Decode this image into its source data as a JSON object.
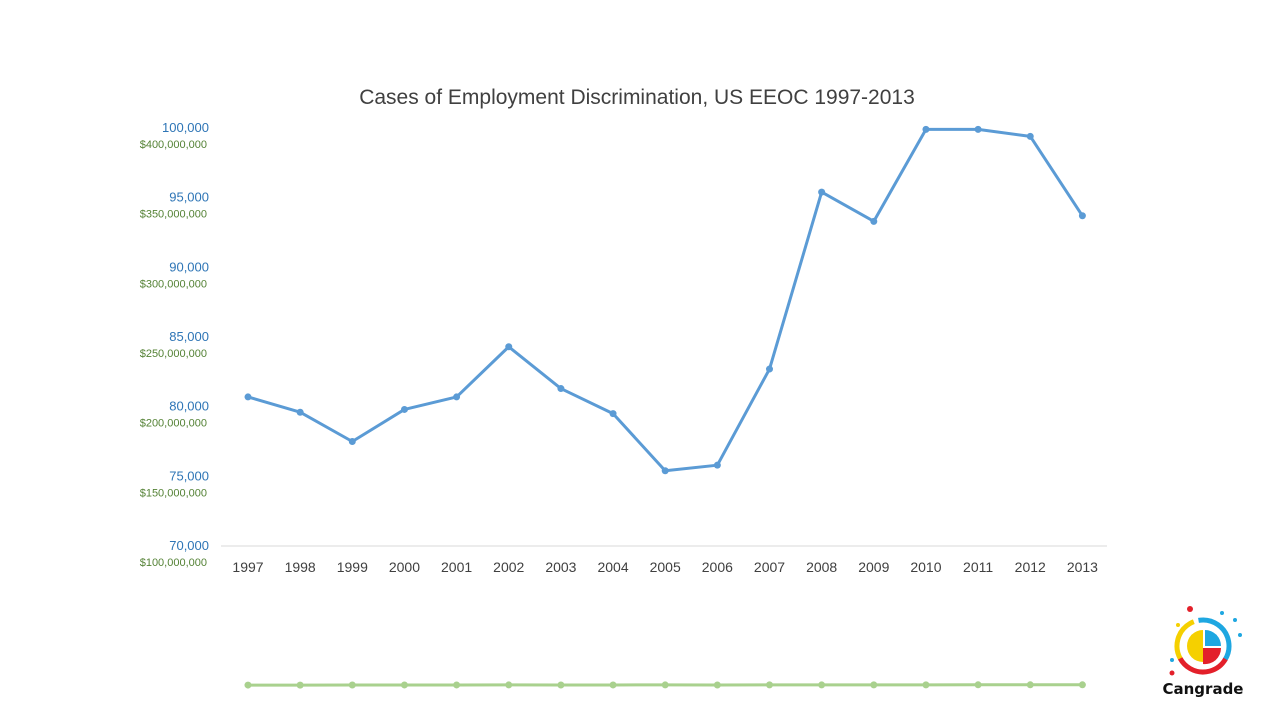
{
  "chart_data": {
    "type": "line",
    "title": "Cases of Employment Discrimination, US EEOC 1997-2013",
    "xlabel": "",
    "ylabel": "",
    "categories": [
      "1997",
      "1998",
      "1999",
      "2000",
      "2001",
      "2002",
      "2003",
      "2004",
      "2005",
      "2006",
      "2007",
      "2008",
      "2009",
      "2010",
      "2011",
      "2012",
      "2013"
    ],
    "y_axis_primary": {
      "range": [
        70000,
        100000
      ],
      "ticks": [
        70000,
        75000,
        80000,
        85000,
        90000,
        95000,
        100000
      ],
      "tick_labels": [
        "70,000",
        "75,000",
        "80,000",
        "85,000",
        "90,000",
        "95,000",
        "100,000"
      ],
      "color": "#2e75b6"
    },
    "y_axis_secondary": {
      "range": [
        100000000,
        400000000
      ],
      "ticks": [
        100000000,
        150000000,
        200000000,
        250000000,
        300000000,
        350000000,
        400000000
      ],
      "tick_labels": [
        "$100,000,000",
        "$150,000,000",
        "$200,000,000",
        "$250,000,000",
        "$300,000,000",
        "$350,000,000",
        "$400,000,000"
      ],
      "color": "#548235"
    },
    "series": [
      {
        "axis": "primary",
        "color": "#5b9bd5",
        "values": [
          80700,
          79600,
          77500,
          79800,
          80700,
          84300,
          81300,
          79500,
          75400,
          75800,
          82700,
          95400,
          93300,
          99900,
          99900,
          99400,
          93700
        ]
      },
      {
        "axis": "secondary",
        "color": "#a9d18e",
        "values": [
          177000,
          169000,
          238000,
          268000,
          270000,
          286000,
          263000,
          276000,
          297000,
          256000,
          322000,
          297000,
          315000,
          340000,
          378000,
          379000,
          385000
        ]
      }
    ],
    "grid": false,
    "legend": "none"
  },
  "logo": {
    "text": "Cangrade"
  }
}
